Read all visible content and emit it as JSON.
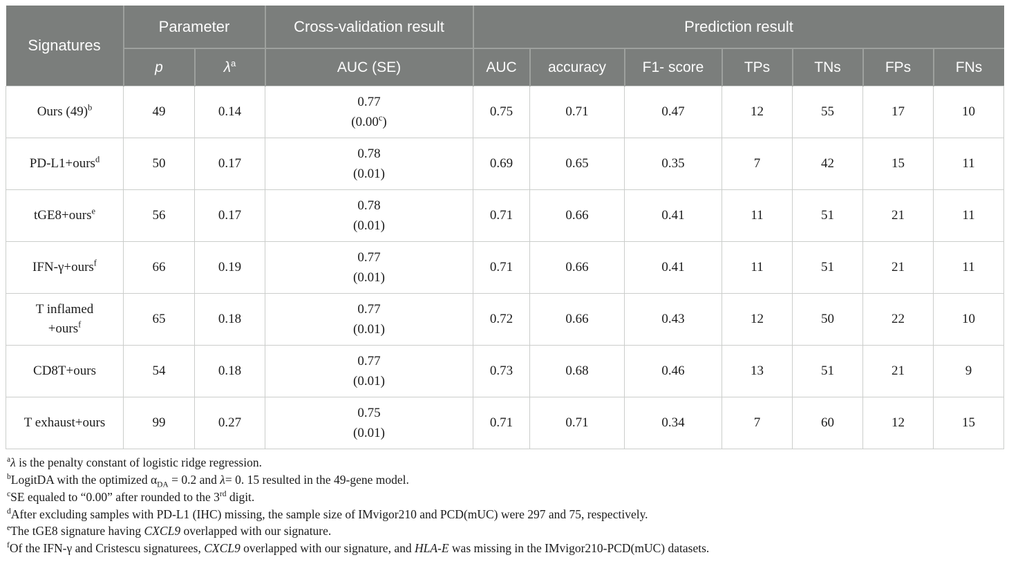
{
  "colors": {
    "header_bg": "#7b7e7c",
    "header_text": "#fdfdfd",
    "header_divider": "#9ea19e",
    "body_border": "#cbcdcb",
    "text": "#1c1c1c",
    "background": "#ffffff"
  },
  "header": {
    "signatures": "Signatures",
    "parameter": "Parameter",
    "cross_validation": "Cross-validation result",
    "prediction": "Prediction result",
    "p": "p",
    "lambda": "λ",
    "lambda_sup": "a",
    "auc_se": "AUC (SE)",
    "auc": "AUC",
    "accuracy": "accuracy",
    "f1_score": "F1- score",
    "tps": "TPs",
    "tns": "TNs",
    "fps": "FPs",
    "fns": "FNs"
  },
  "rows": [
    {
      "signature": [
        {
          "t": "Ours (49)"
        },
        {
          "t": "b",
          "s": "sup"
        }
      ],
      "p": "49",
      "lambda": "0.14",
      "cv_auc": "0.77",
      "cv_se": [
        {
          "t": "(0.00"
        },
        {
          "t": "c",
          "s": "sup"
        },
        {
          "t": ")"
        }
      ],
      "auc": "0.75",
      "accuracy": "0.71",
      "f1": "0.47",
      "tps": "12",
      "tns": "55",
      "fps": "17",
      "fns": "10"
    },
    {
      "signature": [
        {
          "t": "PD-L1+ours"
        },
        {
          "t": "d",
          "s": "sup"
        }
      ],
      "p": "50",
      "lambda": "0.17",
      "cv_auc": "0.78",
      "cv_se": [
        {
          "t": "(0.01)"
        }
      ],
      "auc": "0.69",
      "accuracy": "0.65",
      "f1": "0.35",
      "tps": "7",
      "tns": "42",
      "fps": "15",
      "fns": "11"
    },
    {
      "signature": [
        {
          "t": "tGE8+ours"
        },
        {
          "t": "e",
          "s": "sup"
        }
      ],
      "p": "56",
      "lambda": "0.17",
      "cv_auc": "0.78",
      "cv_se": [
        {
          "t": "(0.01)"
        }
      ],
      "auc": "0.71",
      "accuracy": "0.66",
      "f1": "0.41",
      "tps": "11",
      "tns": "51",
      "fps": "21",
      "fns": "11"
    },
    {
      "signature": [
        {
          "t": "IFN-γ+ours"
        },
        {
          "t": "f",
          "s": "sup"
        }
      ],
      "p": "66",
      "lambda": "0.19",
      "cv_auc": "0.77",
      "cv_se": [
        {
          "t": "(0.01)"
        }
      ],
      "auc": "0.71",
      "accuracy": "0.66",
      "f1": "0.41",
      "tps": "11",
      "tns": "51",
      "fps": "21",
      "fns": "11"
    },
    {
      "signature": [
        {
          "t": "T inflamed"
        },
        {
          "t": "",
          "s": "br"
        },
        {
          "t": "+ours"
        },
        {
          "t": "f",
          "s": "sup"
        }
      ],
      "p": "65",
      "lambda": "0.18",
      "cv_auc": "0.77",
      "cv_se": [
        {
          "t": "(0.01)"
        }
      ],
      "auc": "0.72",
      "accuracy": "0.66",
      "f1": "0.43",
      "tps": "12",
      "tns": "50",
      "fps": "22",
      "fns": "10"
    },
    {
      "signature": [
        {
          "t": "CD8T+ours"
        }
      ],
      "p": "54",
      "lambda": "0.18",
      "cv_auc": "0.77",
      "cv_se": [
        {
          "t": "(0.01)"
        }
      ],
      "auc": "0.73",
      "accuracy": "0.68",
      "f1": "0.46",
      "tps": "13",
      "tns": "51",
      "fps": "21",
      "fns": "9"
    },
    {
      "signature": [
        {
          "t": "T exhaust+ours"
        }
      ],
      "p": "99",
      "lambda": "0.27",
      "cv_auc": "0.75",
      "cv_se": [
        {
          "t": "(0.01)"
        }
      ],
      "auc": "0.71",
      "accuracy": "0.71",
      "f1": "0.34",
      "tps": "7",
      "tns": "60",
      "fps": "12",
      "fns": "15"
    }
  ],
  "footnotes": [
    [
      {
        "t": "a",
        "s": "sup"
      },
      {
        "t": "λ",
        "s": "i"
      },
      {
        "t": " is the penalty constant of logistic ridge regression."
      }
    ],
    [
      {
        "t": "b",
        "s": "sup"
      },
      {
        "t": "LogitDA with the optimized α"
      },
      {
        "t": "DA",
        "s": "sub"
      },
      {
        "t": " = 0.2 and "
      },
      {
        "t": "λ",
        "s": "i"
      },
      {
        "t": "= 0. 15 resulted in the 49-gene model."
      }
    ],
    [
      {
        "t": "c",
        "s": "sup"
      },
      {
        "t": "SE equaled to “0.00” after rounded to the 3"
      },
      {
        "t": "rd",
        "s": "sup"
      },
      {
        "t": " digit."
      }
    ],
    [
      {
        "t": "d",
        "s": "sup"
      },
      {
        "t": "After excluding samples with PD-L1 (IHC) missing, the sample size of IMvigor210 and PCD(mUC) were 297 and 75, respectively."
      }
    ],
    [
      {
        "t": "e",
        "s": "sup"
      },
      {
        "t": "The tGE8 signature having "
      },
      {
        "t": "CXCL9",
        "s": "i"
      },
      {
        "t": " overlapped with our signature."
      }
    ],
    [
      {
        "t": "f",
        "s": "sup"
      },
      {
        "t": "Of the IFN-γ and Cristescu signaturees, "
      },
      {
        "t": "CXCL9",
        "s": "i"
      },
      {
        "t": " overlapped with our signature, and "
      },
      {
        "t": "HLA-E",
        "s": "i"
      },
      {
        "t": " was missing in the IMvigor210-PCD(mUC) datasets."
      }
    ]
  ]
}
